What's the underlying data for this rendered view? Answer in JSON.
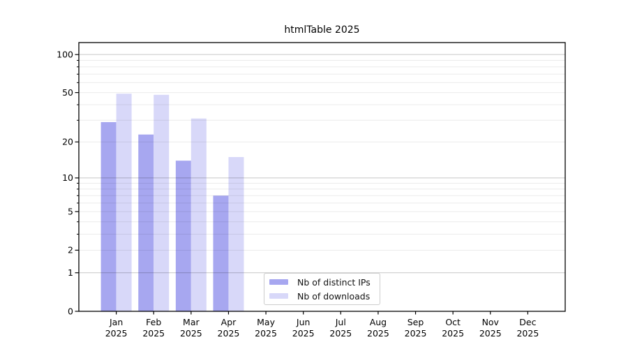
{
  "title": "htmlTable 2025",
  "legend": {
    "items": [
      {
        "label": "Nb of distinct IPs",
        "color": "#a7a7f0"
      },
      {
        "label": "Nb of downloads",
        "color": "#d8d8f9"
      }
    ]
  },
  "chart_data": {
    "type": "bar",
    "title": "htmlTable 2025",
    "categories": [
      "Jan 2025",
      "Feb 2025",
      "Mar 2025",
      "Apr 2025",
      "May 2025",
      "Jun 2025",
      "Jul 2025",
      "Aug 2025",
      "Sep 2025",
      "Oct 2025",
      "Nov 2025",
      "Dec 2025"
    ],
    "x_tick_months": [
      "Jan",
      "Feb",
      "Mar",
      "Apr",
      "May",
      "Jun",
      "Jul",
      "Aug",
      "Sep",
      "Oct",
      "Nov",
      "Dec"
    ],
    "x_tick_year": "2025",
    "series": [
      {
        "name": "Nb of distinct IPs",
        "color": "#a7a7f0",
        "values": [
          29,
          23,
          14,
          7,
          0,
          0,
          0,
          0,
          0,
          0,
          0,
          0
        ]
      },
      {
        "name": "Nb of downloads",
        "color": "#d8d8f9",
        "values": [
          49,
          48,
          31,
          15,
          0,
          0,
          0,
          0,
          0,
          0,
          0,
          0
        ]
      }
    ],
    "xlabel": "",
    "ylabel": "",
    "yscale": "log1p",
    "ylim": [
      0,
      122
    ],
    "yticks": [
      0,
      1,
      2,
      5,
      10,
      20,
      50,
      100
    ],
    "ytick_labels": [
      "0",
      "1",
      "2",
      "5",
      "10",
      "20",
      "50",
      "100"
    ],
    "minor_yticks": [
      3,
      4,
      6,
      7,
      8,
      9,
      30,
      40,
      60,
      70,
      80,
      90
    ],
    "major_gridlines": [
      1,
      10,
      100
    ],
    "grid": "both",
    "gridlines_above_bars": true,
    "legend_position": "lower-center"
  },
  "colors": {
    "bar_dark": "#a7a7f0",
    "bar_light": "#d8d8f9",
    "grid_major": "rgba(0,0,0,0.22)",
    "grid_minor": "rgba(0,0,0,0.08)",
    "axis": "#000000",
    "background": "#ffffff"
  }
}
